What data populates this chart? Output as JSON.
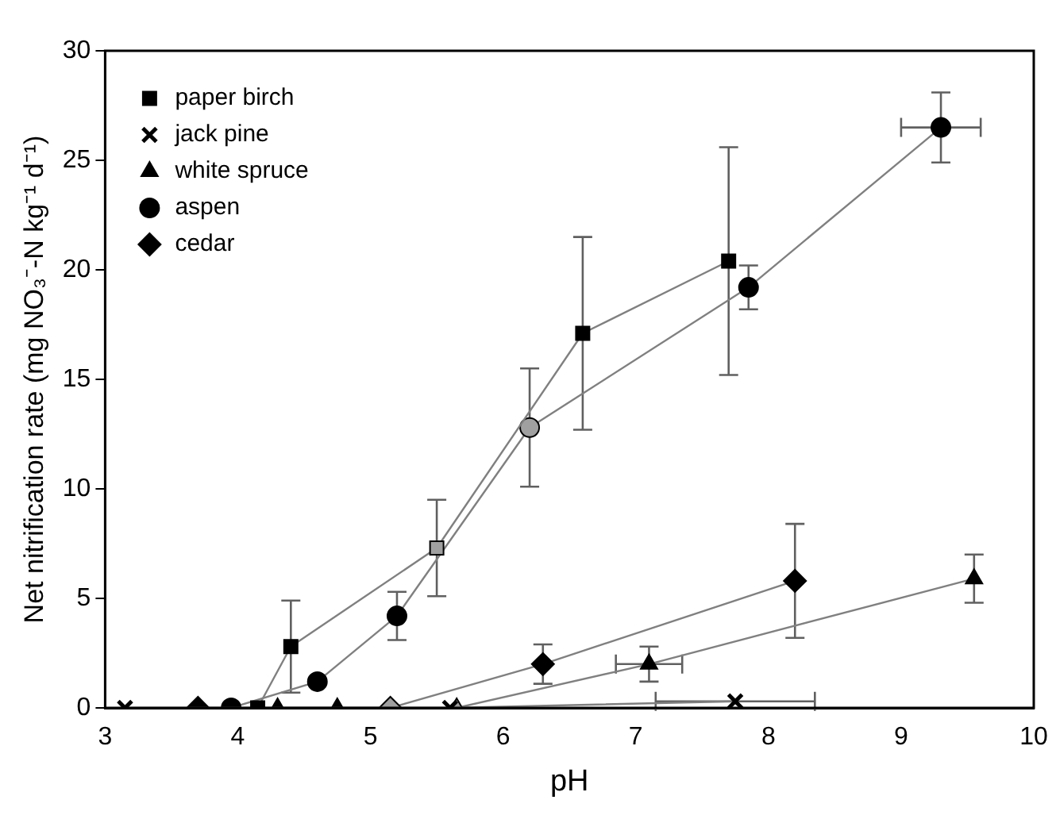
{
  "chart_data": {
    "type": "line",
    "xlabel": "pH",
    "ylabel": "Net nitrification rate (mg NO₃⁻-N kg⁻¹ d⁻¹)",
    "xlim": [
      3,
      10
    ],
    "xticks": [
      3,
      4,
      5,
      6,
      7,
      8,
      9,
      10
    ],
    "ylim": [
      0,
      30
    ],
    "yticks": [
      0,
      5,
      10,
      15,
      20,
      25,
      30
    ],
    "grid": false,
    "legend": "top left",
    "line_style": "solid",
    "series": [
      {
        "name": "paper birch",
        "marker": "square",
        "color": "#000000",
        "colors": [
          "#000000",
          "#000000",
          "#a0a0a0",
          "#000000",
          "#000000"
        ],
        "x": [
          4.15,
          4.4,
          5.5,
          6.6,
          7.7
        ],
        "values": [
          0,
          2.8,
          7.3,
          17.1,
          20.4
        ],
        "errors": [
          null,
          2.1,
          2.2,
          4.4,
          5.2
        ]
      },
      {
        "name": "jack pine",
        "marker": "cross",
        "color": "#000000",
        "x": [
          3.15,
          5.6,
          7.75
        ],
        "values": [
          0,
          0,
          0.3
        ],
        "xerrors": [
          null,
          null,
          0.6
        ]
      },
      {
        "name": "white spruce",
        "marker": "triangle",
        "color": "#000000",
        "colors": [
          "#000000",
          "#000000",
          "#a0a0a0",
          "#000000",
          "#000000"
        ],
        "x": [
          4.3,
          4.75,
          5.65,
          7.1,
          9.55
        ],
        "values": [
          0,
          0,
          0,
          2.0,
          5.9
        ],
        "errors": [
          null,
          null,
          null,
          0.8,
          1.1
        ],
        "xerrors": [
          null,
          null,
          null,
          0.25,
          null
        ]
      },
      {
        "name": "aspen",
        "marker": "circle",
        "color": "#000000",
        "colors": [
          "#000000",
          "#000000",
          "#000000",
          "#a0a0a0",
          "#000000",
          "#000000"
        ],
        "x": [
          3.95,
          4.6,
          5.2,
          6.2,
          7.85,
          9.3
        ],
        "values": [
          0,
          1.2,
          4.2,
          12.8,
          19.2,
          26.5
        ],
        "errors": [
          null,
          null,
          1.1,
          2.7,
          1.0,
          1.6
        ],
        "xerrors": [
          null,
          null,
          null,
          null,
          null,
          0.3
        ]
      },
      {
        "name": "cedar",
        "marker": "diamond",
        "color": "#000000",
        "colors": [
          "#000000",
          "#a0a0a0",
          "#000000",
          "#000000"
        ],
        "x": [
          3.7,
          5.15,
          6.3,
          8.2
        ],
        "values": [
          0,
          0,
          2.0,
          5.8
        ],
        "errors": [
          null,
          null,
          0.9,
          2.6
        ]
      }
    ]
  }
}
